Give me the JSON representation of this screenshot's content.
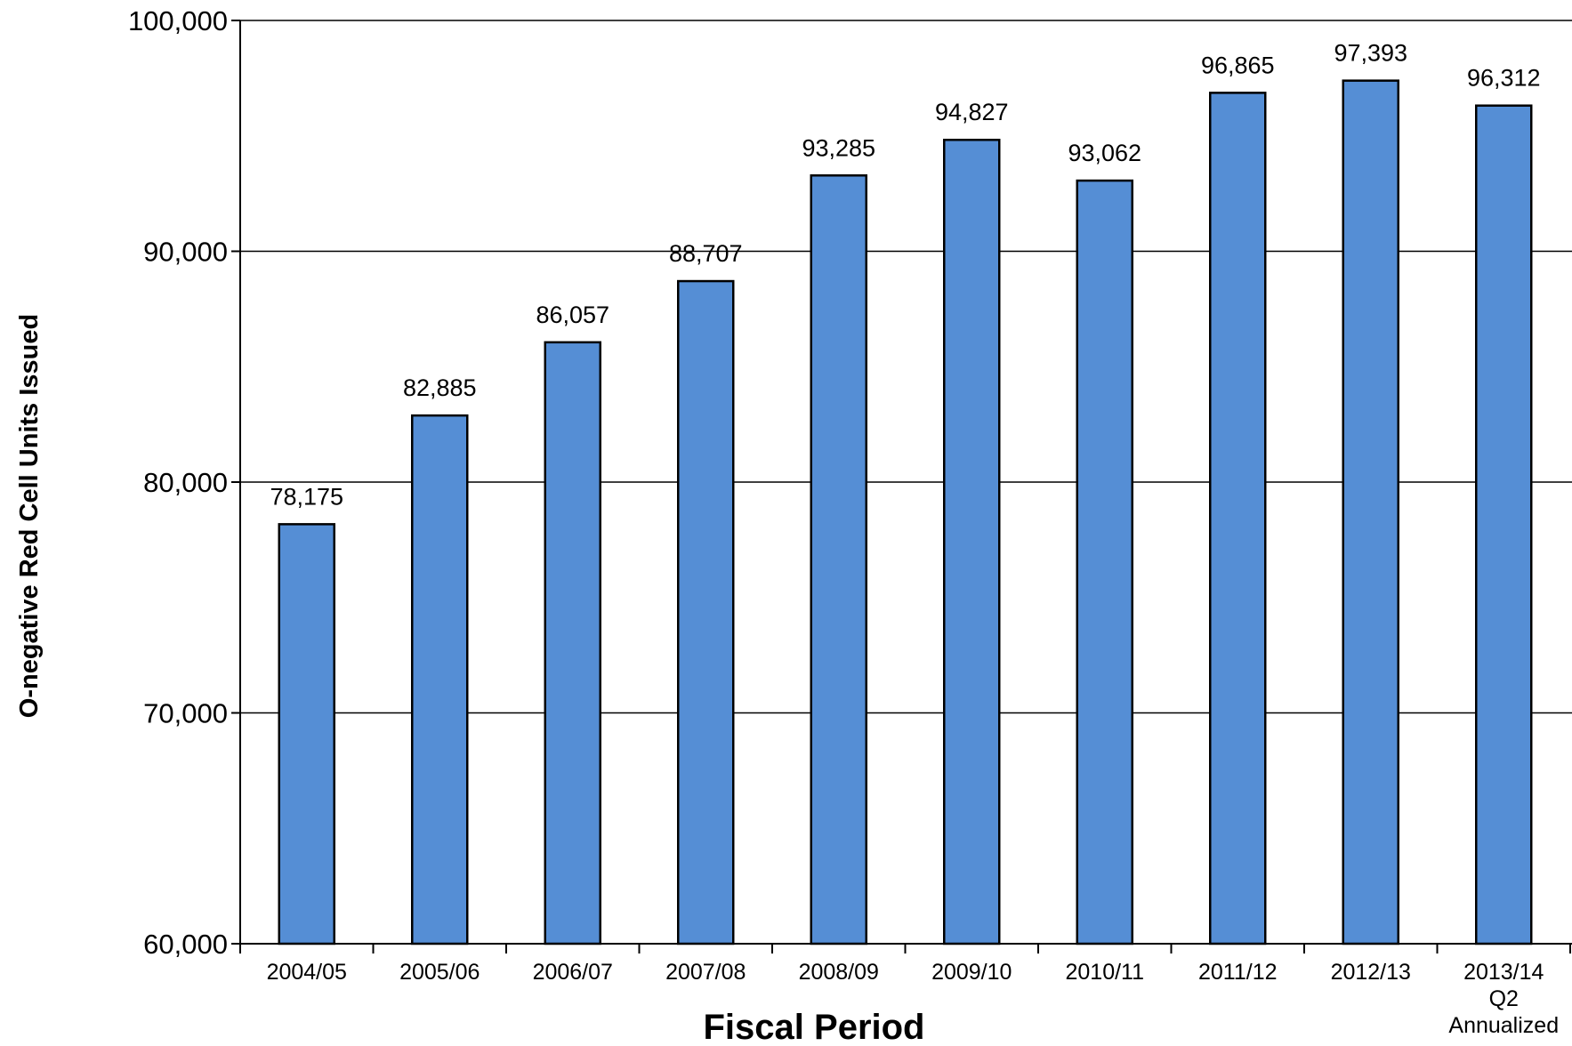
{
  "chart_data": {
    "type": "bar",
    "categories": [
      [
        "2004/05"
      ],
      [
        "2005/06"
      ],
      [
        "2006/07"
      ],
      [
        "2007/08"
      ],
      [
        "2008/09"
      ],
      [
        "2009/10"
      ],
      [
        "2010/11"
      ],
      [
        "2011/12"
      ],
      [
        "2012/13"
      ],
      [
        "2013/14",
        "Q2",
        "Annualized"
      ]
    ],
    "values": [
      78175,
      82885,
      86057,
      88707,
      93285,
      94827,
      93062,
      96865,
      97393,
      96312
    ],
    "value_labels": [
      "78,175",
      "82,885",
      "86,057",
      "88,707",
      "93,285",
      "94,827",
      "93,062",
      "96,865",
      "97,393",
      "96,312"
    ],
    "xlabel": "Fiscal Period",
    "ylabel": "O-negative Red Cell Units Issued",
    "ylim": [
      60000,
      100000
    ],
    "yticks": [
      60000,
      70000,
      80000,
      90000,
      100000
    ],
    "ytick_labels": [
      "60,000",
      "70,000",
      "80,000",
      "90,000",
      "100,000"
    ],
    "grid": true,
    "colors": {
      "bar_fill": "#558ed5",
      "bar_stroke": "#000000",
      "grid": "#000000"
    }
  }
}
